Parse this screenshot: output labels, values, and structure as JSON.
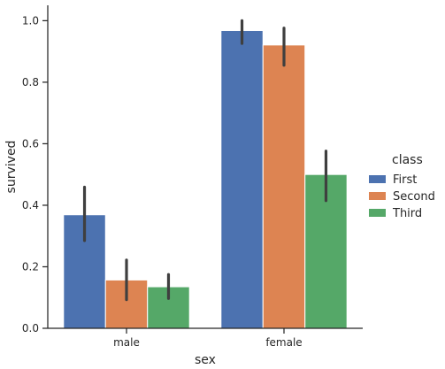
{
  "chart_data": {
    "type": "bar",
    "title": "",
    "xlabel": "sex",
    "ylabel": "survived",
    "categories": [
      "male",
      "female"
    ],
    "ylim": [
      0,
      1.05
    ],
    "yticks": [
      "0.0",
      "0.2",
      "0.4",
      "0.6",
      "0.8",
      "1.0"
    ],
    "grid": false,
    "legend": {
      "title": "class",
      "placement": "right"
    },
    "series": [
      {
        "name": "First",
        "color": "#4c72b0",
        "values": [
          0.369,
          0.968
        ],
        "ci": [
          [
            0.285,
            0.459
          ],
          [
            0.926,
            1.0
          ]
        ]
      },
      {
        "name": "Second",
        "color": "#dd8452",
        "values": [
          0.157,
          0.921
        ],
        "ci": [
          [
            0.093,
            0.222
          ],
          [
            0.855,
            0.976
          ]
        ]
      },
      {
        "name": "Third",
        "color": "#55a868",
        "values": [
          0.135,
          0.5
        ],
        "ci": [
          [
            0.097,
            0.175
          ],
          [
            0.415,
            0.576
          ]
        ]
      }
    ],
    "errorbar_color": "#3f3f3f"
  }
}
